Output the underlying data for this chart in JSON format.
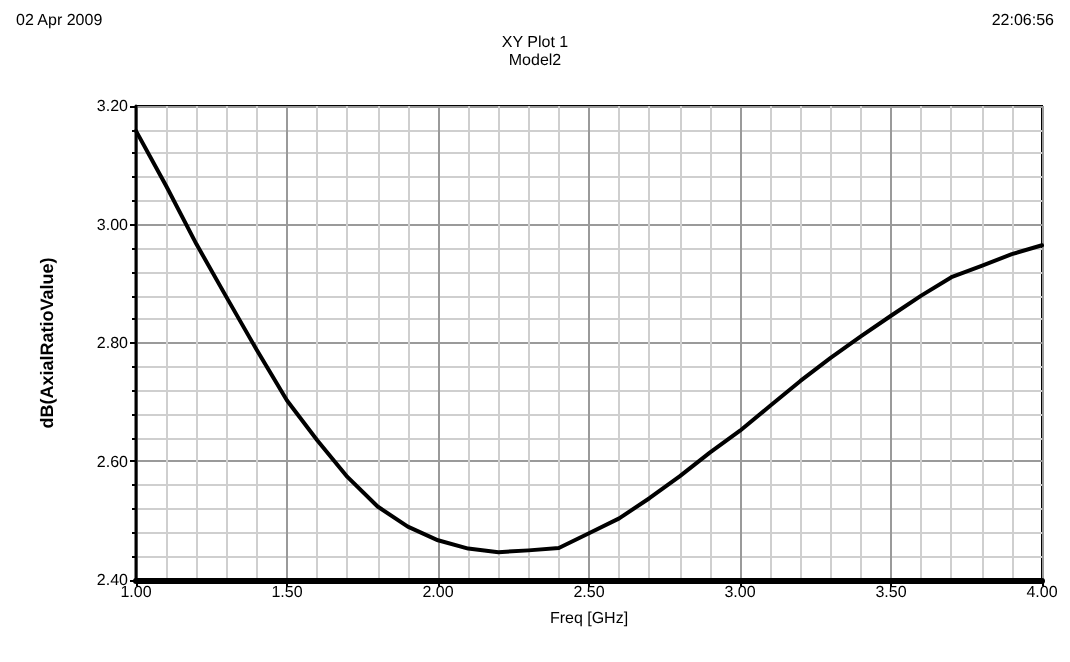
{
  "chart_data": {
    "type": "line",
    "title": "XY Plot 1",
    "subtitle": "Model2",
    "xlabel": "Freq [GHz]",
    "ylabel": "dB(AxialRatioValue)",
    "annotations": [
      "02 Apr 2009",
      "22:06:56"
    ],
    "x": [
      1.0,
      1.1,
      1.2,
      1.3,
      1.4,
      1.5,
      1.6,
      1.7,
      1.8,
      1.9,
      2.0,
      2.1,
      2.2,
      2.3,
      2.4,
      2.5,
      2.6,
      2.7,
      2.8,
      2.9,
      3.0,
      3.1,
      3.2,
      3.3,
      3.4,
      3.5,
      3.6,
      3.7,
      3.8,
      3.9,
      4.0
    ],
    "series": [
      {
        "color": "#000000",
        "values": [
          3.158,
          3.065,
          2.967,
          2.877,
          2.788,
          2.703,
          2.636,
          2.574,
          2.524,
          2.49,
          2.467,
          2.453,
          2.447,
          2.45,
          2.454,
          2.479,
          2.504,
          2.538,
          2.575,
          2.615,
          2.652,
          2.694,
          2.736,
          2.775,
          2.811,
          2.846,
          2.88,
          2.911,
          2.93,
          2.95,
          2.965
        ]
      }
    ],
    "xlim": [
      1.0,
      4.0
    ],
    "xticks": [
      {
        "value": 1.0,
        "label": "1.00"
      },
      {
        "value": 1.5,
        "label": "1.50"
      },
      {
        "value": 2.0,
        "label": "2.00"
      },
      {
        "value": 2.5,
        "label": "2.50"
      },
      {
        "value": 3.0,
        "label": "3.00"
      },
      {
        "value": 3.5,
        "label": "3.50"
      },
      {
        "value": 4.0,
        "label": "4.00"
      }
    ],
    "ylim": [
      2.4,
      3.2
    ],
    "yticks": [
      {
        "value": 2.4,
        "label": "2.40"
      },
      {
        "value": 2.6,
        "label": "2.60"
      },
      {
        "value": 2.8,
        "label": "2.80"
      },
      {
        "value": 3.0,
        "label": "3.00"
      },
      {
        "value": 3.2,
        "label": "3.20"
      }
    ],
    "grid": true,
    "marker": "none",
    "line_style": "solid"
  }
}
